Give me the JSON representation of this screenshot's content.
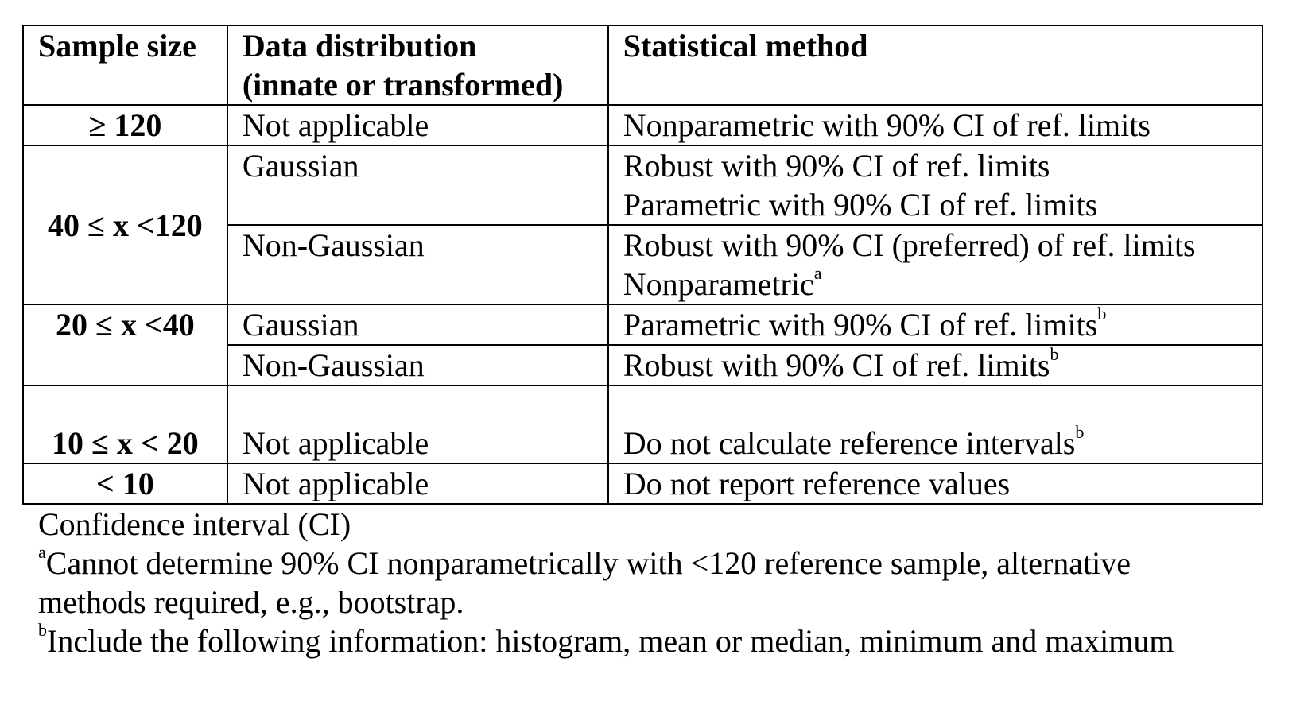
{
  "table": {
    "headers": {
      "sample_size": "Sample size",
      "distribution_line1": "Data distribution",
      "distribution_line2": "(innate or transformed)",
      "method": "Statistical method"
    },
    "rows": [
      {
        "sample_size": "≥ 120",
        "distribution": "Not applicable",
        "method_lines": [
          "Nonparametric with 90% CI of ref. limits"
        ]
      },
      {
        "sample_size": "40 ≤ x <120",
        "groups": [
          {
            "distribution": "Gaussian",
            "method_lines": [
              "Robust with 90% CI of ref. limits",
              "Parametric with 90% CI of ref. limits"
            ]
          },
          {
            "distribution": "Non-Gaussian",
            "method_lines": [
              "Robust with 90% CI (preferred) of ref. limits",
              "Nonparametric"
            ],
            "method_sup": "a"
          }
        ]
      },
      {
        "sample_size": "20 ≤ x <40",
        "groups": [
          {
            "distribution": "Gaussian",
            "method_lines": [
              "Parametric with 90% CI of ref. limits"
            ],
            "method_sup": "b"
          },
          {
            "distribution": "Non-Gaussian",
            "method_lines": [
              "Robust with 90% CI of ref. limits"
            ],
            "method_sup": "b"
          }
        ]
      },
      {
        "sample_size": "10 ≤ x < 20",
        "distribution": "Not applicable",
        "method_lines": [
          "Do not calculate reference intervals"
        ],
        "method_sup": "b"
      },
      {
        "sample_size": "< 10",
        "distribution": "Not applicable",
        "method_lines": [
          "Do not report reference values"
        ]
      }
    ]
  },
  "footnotes": {
    "ci": "Confidence interval (CI)",
    "a_marker": "a",
    "a_text_line1": "Cannot determine 90% CI nonparametrically with <120 reference sample, alternative",
    "a_text_line2": "methods required, e.g., bootstrap.",
    "b_marker": "b",
    "b_text": "Include the following information: histogram, mean or median, minimum and maximum"
  }
}
